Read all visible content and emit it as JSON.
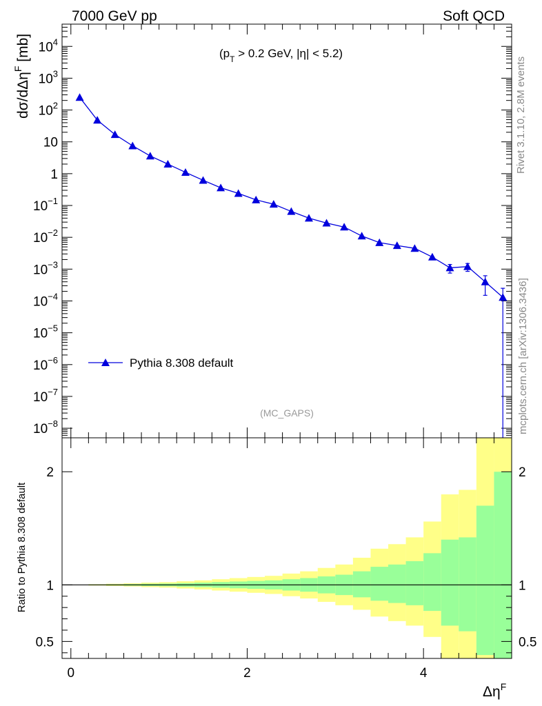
{
  "header": {
    "energy_label": "7000 GeV pp",
    "process_label": "Soft QCD"
  },
  "annotations": {
    "cut_label": "(p",
    "cut_sub": "T",
    "cut_rest": " > 0.2 GeV, |η| < 5.2)",
    "analysis_tag": "(MC_GAPS)",
    "side_rivet": "Rivet 3.1.10,  2.8M events",
    "side_mcplots": "mcplots.cern.ch [arXiv:1306.3436]"
  },
  "colors": {
    "series": "#0000dd",
    "band_inner": "#99ff99",
    "band_outer": "#ffff88"
  },
  "chart_data": [
    {
      "type": "line",
      "scale": "log",
      "ylabel_main": "dσ/dΔη",
      "ylabel_sup": "F",
      "ylabel_unit": " [mb]",
      "xlim": [
        -0.1,
        5.0
      ],
      "ylim": [
        5e-09,
        50000.0
      ],
      "yticks": [
        {
          "v": 10000.0,
          "base": "10",
          "exp": "4"
        },
        {
          "v": 1000.0,
          "base": "10",
          "exp": "3"
        },
        {
          "v": 100.0,
          "base": "10",
          "exp": "2"
        },
        {
          "v": 10,
          "base": "10",
          "exp": ""
        },
        {
          "v": 1,
          "base": "1",
          "exp": ""
        },
        {
          "v": 0.1,
          "base": "10",
          "exp": "−1"
        },
        {
          "v": 0.01,
          "base": "10",
          "exp": "−2"
        },
        {
          "v": 0.001,
          "base": "10",
          "exp": "−3"
        },
        {
          "v": 0.0001,
          "base": "10",
          "exp": "−4"
        },
        {
          "v": 1e-05,
          "base": "10",
          "exp": "−5"
        },
        {
          "v": 1e-06,
          "base": "10",
          "exp": "−6"
        },
        {
          "v": 1e-07,
          "base": "10",
          "exp": "−7"
        },
        {
          "v": 1e-08,
          "base": "10",
          "exp": "−8"
        }
      ],
      "series": [
        {
          "name": "Pythia 8.308 default",
          "x": [
            0.1,
            0.3,
            0.5,
            0.7,
            0.9,
            1.1,
            1.3,
            1.5,
            1.7,
            1.9,
            2.1,
            2.3,
            2.5,
            2.7,
            2.9,
            3.1,
            3.3,
            3.5,
            3.7,
            3.9,
            4.1,
            4.3,
            4.5,
            4.7,
            4.9
          ],
          "y": [
            250,
            48,
            17,
            7.5,
            3.6,
            2.0,
            1.1,
            0.62,
            0.36,
            0.24,
            0.15,
            0.11,
            0.065,
            0.04,
            0.028,
            0.021,
            0.011,
            0.0068,
            0.0055,
            0.0045,
            0.0024,
            0.0011,
            0.0012,
            0.0004,
            0.00013
          ],
          "yerr_lo": [
            0,
            0,
            0,
            0,
            0,
            0,
            0,
            0,
            0,
            0,
            0,
            0,
            0,
            0,
            0,
            0,
            0,
            0,
            0,
            0,
            0,
            0.00035,
            0.00035,
            0.00025,
            0.00013
          ],
          "yerr_hi": [
            0,
            0,
            0,
            0,
            0,
            0,
            0,
            0,
            0,
            0,
            0,
            0,
            0,
            0,
            0,
            0,
            0,
            0,
            0,
            0,
            0,
            0.0003,
            0.0003,
            0.00022,
            0.00012
          ]
        }
      ]
    },
    {
      "type": "area",
      "ylabel": "Ratio to Pythia 8.308 default",
      "xlabel_main": "Δη",
      "xlabel_sup": "F",
      "xlim": [
        -0.1,
        5.0
      ],
      "ylim": [
        0.35,
        2.3
      ],
      "yticks": [
        0.5,
        1,
        2
      ],
      "ytick_labels": [
        "0.5",
        "1",
        "2"
      ],
      "xticks": [
        0,
        2,
        4
      ],
      "xtick_labels": [
        "0",
        "2",
        "4"
      ],
      "bin_edges": [
        0,
        0.2,
        0.4,
        0.6,
        0.8,
        1.0,
        1.2,
        1.4,
        1.6,
        1.8,
        2.0,
        2.2,
        2.4,
        2.6,
        2.8,
        3.0,
        3.2,
        3.4,
        3.6,
        3.8,
        4.0,
        4.2,
        4.4,
        4.6,
        4.8,
        5.0
      ],
      "inner_hi": [
        1.0,
        1.003,
        1.005,
        1.007,
        1.01,
        1.012,
        1.016,
        1.02,
        1.025,
        1.03,
        1.035,
        1.04,
        1.05,
        1.06,
        1.075,
        1.09,
        1.12,
        1.16,
        1.18,
        1.21,
        1.28,
        1.4,
        1.42,
        1.7,
        2.0
      ],
      "inner_lo": [
        1.0,
        0.997,
        0.995,
        0.993,
        0.99,
        0.988,
        0.984,
        0.98,
        0.975,
        0.97,
        0.965,
        0.96,
        0.95,
        0.94,
        0.925,
        0.91,
        0.89,
        0.86,
        0.84,
        0.82,
        0.77,
        0.64,
        0.59,
        0.38,
        0.35
      ],
      "outer_hi": [
        1.0,
        1.006,
        1.01,
        1.014,
        1.02,
        1.024,
        1.032,
        1.04,
        1.05,
        1.06,
        1.07,
        1.08,
        1.1,
        1.12,
        1.15,
        1.18,
        1.24,
        1.32,
        1.36,
        1.42,
        1.56,
        1.8,
        1.84,
        2.3,
        2.3
      ],
      "outer_lo": [
        1.0,
        0.994,
        0.99,
        0.986,
        0.98,
        0.976,
        0.968,
        0.96,
        0.95,
        0.94,
        0.93,
        0.92,
        0.9,
        0.88,
        0.85,
        0.82,
        0.78,
        0.72,
        0.68,
        0.64,
        0.54,
        0.35,
        0.35,
        0.35,
        0.35
      ],
      "reference": 1
    }
  ]
}
